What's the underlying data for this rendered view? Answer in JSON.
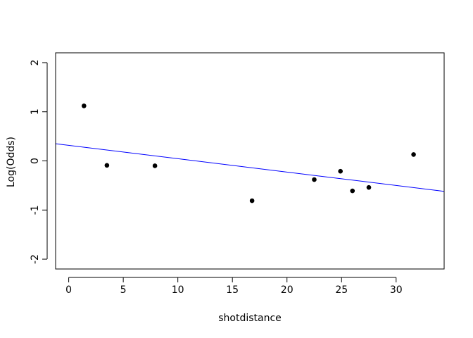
{
  "chart_data": {
    "type": "scatter",
    "title": "",
    "xlabel": "shotdistance",
    "ylabel": "Log(Odds)",
    "xlim": [
      -1.2,
      34.4
    ],
    "ylim": [
      -2.2,
      2.2
    ],
    "x_ticks": [
      0,
      5,
      10,
      15,
      20,
      25,
      30
    ],
    "y_ticks": [
      -2,
      -1,
      0,
      1,
      2
    ],
    "x_tick_labels": [
      "0",
      "5",
      "10",
      "15",
      "20",
      "25",
      "30"
    ],
    "y_tick_labels": [
      "-2",
      "-1",
      "0",
      "1",
      "2"
    ],
    "grid": false,
    "legend": "none",
    "series": [
      {
        "type": "scatter",
        "color": "#000000",
        "x": [
          1.4,
          3.5,
          7.9,
          16.8,
          22.5,
          24.9,
          26.0,
          27.5,
          31.6
        ],
        "y": [
          1.12,
          -0.09,
          -0.1,
          -0.81,
          -0.38,
          -0.21,
          -0.61,
          -0.54,
          0.13
        ]
      },
      {
        "type": "line",
        "color": "#0000ff",
        "x": [
          -1.2,
          34.4
        ],
        "y": [
          0.35,
          -0.62
        ]
      }
    ]
  }
}
